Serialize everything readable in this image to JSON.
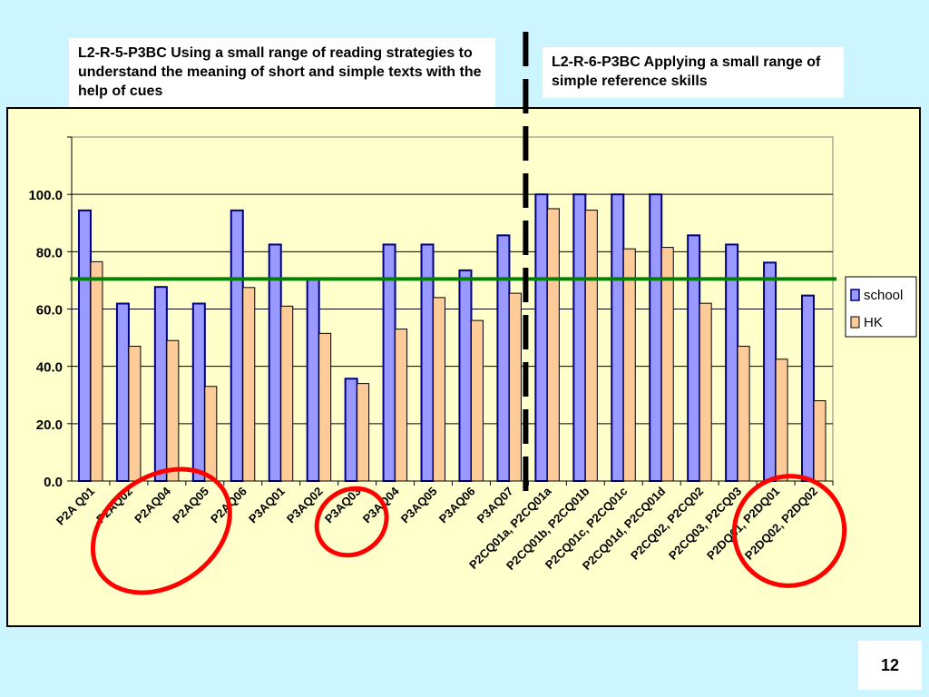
{
  "callouts": {
    "left": "L2-R-5-P3BC Using a small range of reading strategies to understand the meaning of short and simple texts with the help of cues",
    "right": "L2-R-6-P3BC Applying a small range of simple reference skills"
  },
  "page_number": "12",
  "colors": {
    "background": "#ccf5ff",
    "plot_area": "#ffffcc",
    "school_fill": "#9999ff",
    "school_stroke": "#000080",
    "hk_fill": "#ffcc99",
    "benchmark_line": "#008000",
    "highlight_ellipse": "#ff0000"
  },
  "chart_data": {
    "type": "bar",
    "categories": [
      "P2A Q01",
      "P2AQ02",
      "P2AQ04",
      "P2AQ05",
      "P2AQ06",
      "P3AQ01",
      "P3AQ02",
      "P3AQ03",
      "P3AQ04",
      "P3AQ05",
      "P3AQ06",
      "P3AQ07",
      "P2CQ01a, P2CQ01a",
      "P2CQ01b, P2CQ01b",
      "P2CQ01c, P2CQ01c",
      "P2CQ01d, P2CQ01d",
      "P2CQ02, P2CQ02",
      "P2CQ03, P2CQ03",
      "P2DQ01, P2DQ01",
      "P2DQ02, P2DQ02"
    ],
    "series": [
      {
        "name": "school",
        "values": [
          94.4,
          61.9,
          67.7,
          61.9,
          94.4,
          82.5,
          70.4,
          35.7,
          82.5,
          82.5,
          73.5,
          85.7,
          100,
          100,
          100,
          100,
          85.7,
          82.5,
          76.2,
          64.7
        ]
      },
      {
        "name": "HK",
        "values": [
          76.5,
          47.0,
          49.0,
          33.0,
          67.5,
          61.0,
          51.5,
          34.0,
          53.0,
          64.0,
          56.0,
          65.5,
          95.0,
          94.5,
          81.0,
          81.5,
          62.0,
          47.0,
          42.5,
          28.0
        ]
      }
    ],
    "yticks": [
      "0.0",
      "20.0",
      "40.0",
      "60.0",
      "80.0",
      "100.0"
    ],
    "ylim": [
      0,
      120
    ],
    "benchmark": 70.5,
    "grid": true,
    "legend": "right",
    "divider_after_category": "P3AQ07",
    "highlighted_categories": [
      "P2AQ02",
      "P2AQ04",
      "P2AQ05",
      "P3AQ03",
      "P2DQ01, P2DQ01",
      "P2DQ02, P2DQ02"
    ]
  }
}
